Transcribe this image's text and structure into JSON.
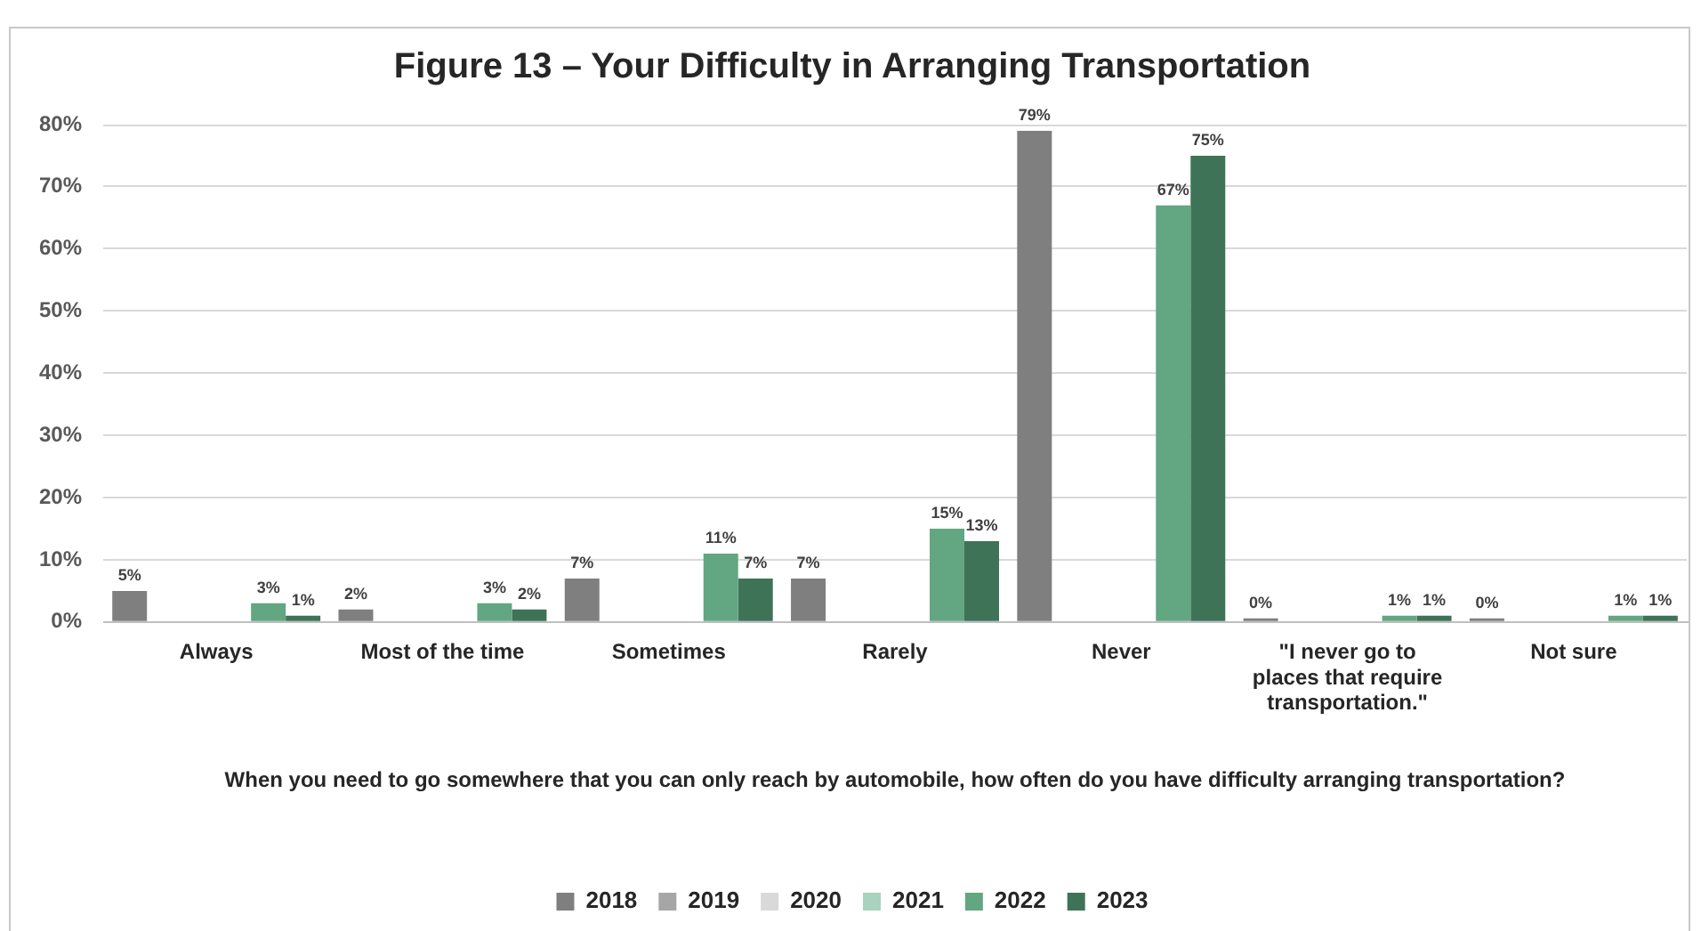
{
  "chart_data": {
    "type": "bar",
    "title": "Figure 13 – Your Difficulty in Arranging Transportation",
    "xlabel": "When you need to go somewhere that you can only reach by automobile, how often do you have difficulty arranging transportation?",
    "categories": [
      "Always",
      "Most of the time",
      "Sometimes",
      "Rarely",
      "Never",
      "\"I never go to places that require transportation.\"",
      "Not sure"
    ],
    "series": [
      {
        "name": "2018",
        "color": "#7f7f7f",
        "values": [
          5,
          2,
          7,
          7,
          79,
          0,
          0
        ],
        "value_labels": [
          "5%",
          "2%",
          "7%",
          "7%",
          "79%",
          "0%",
          "0%"
        ]
      },
      {
        "name": "2019",
        "color": "#a6a6a6",
        "values": [
          null,
          null,
          null,
          null,
          null,
          null,
          null
        ]
      },
      {
        "name": "2020",
        "color": "#d9d9d9",
        "values": [
          null,
          null,
          null,
          null,
          null,
          null,
          null
        ]
      },
      {
        "name": "2021",
        "color": "#a9d3be",
        "values": [
          null,
          null,
          null,
          null,
          null,
          null,
          null
        ]
      },
      {
        "name": "2022",
        "color": "#62a682",
        "values": [
          3,
          3,
          11,
          15,
          67,
          1,
          1
        ],
        "value_labels": [
          "3%",
          "3%",
          "11%",
          "15%",
          "67%",
          "1%",
          "1%"
        ]
      },
      {
        "name": "2023",
        "color": "#3e7357",
        "values": [
          1,
          2,
          7,
          13,
          75,
          1,
          1
        ],
        "value_labels": [
          "1%",
          "2%",
          "7%",
          "13%",
          "75%",
          "1%",
          "1%"
        ]
      }
    ],
    "ylim": [
      0,
      80
    ],
    "yticks": [
      {
        "value": 0,
        "label": "0%"
      },
      {
        "value": 10,
        "label": "10%"
      },
      {
        "value": 20,
        "label": "20%"
      },
      {
        "value": 30,
        "label": "30%"
      },
      {
        "value": 40,
        "label": "40%"
      },
      {
        "value": 50,
        "label": "50%"
      },
      {
        "value": 60,
        "label": "60%"
      },
      {
        "value": 70,
        "label": "70%"
      },
      {
        "value": 80,
        "label": "80%"
      }
    ],
    "grid": "y",
    "legend": "bottom"
  }
}
